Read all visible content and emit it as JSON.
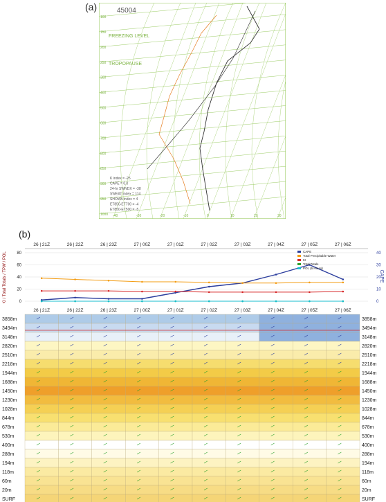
{
  "labels": {
    "a": "(a)",
    "b": "(b)"
  },
  "skewt": {
    "station": "45004",
    "freezing_level": "FREEZING LEVEL",
    "tropopause": "TROPOPAUSE",
    "indices": [
      "K index = -25",
      "CAPE = 0.0",
      "24-hr SWNDX = -38",
      "SWEAT index = 114",
      "SHOWA index = 4",
      "ET850-ET700 = -4",
      "ET850-ET500 = -5"
    ],
    "pressure_labels": [
      "100",
      "150",
      "200",
      "250",
      "300",
      "400",
      "500",
      "600",
      "700",
      "800",
      "850",
      "900",
      "950",
      "1000"
    ],
    "temp_labels": [
      "-40",
      "-30",
      "-20",
      "-10",
      "0",
      "10",
      "20",
      "30"
    ]
  },
  "timeseries": {
    "times": [
      "26 | 21Z",
      "26 | 22Z",
      "26 | 23Z",
      "27 | 00Z",
      "27 | 01Z",
      "27 | 02Z",
      "27 | 03Z",
      "27 | 04Z",
      "27 | 05Z",
      "27 | 06Z"
    ],
    "ylabel_left": "KI / Total Totals / TPW / POL",
    "ylabel_right": "CAPE",
    "legend": [
      "CAPE",
      "Total Precipitable Water",
      "KI",
      "Total Totals",
      "POL (6 Hours)"
    ]
  },
  "chart_data": [
    {
      "type": "line",
      "title": "",
      "xlabel": "",
      "ylabel": "KI / Total Totals / TPW / POL",
      "categories": [
        "26 | 21Z",
        "26 | 22Z",
        "26 | 23Z",
        "27 | 00Z",
        "27 | 01Z",
        "27 | 02Z",
        "27 | 03Z",
        "27 | 04Z",
        "27 | 05Z",
        "27 | 06Z"
      ],
      "ylim": [
        0,
        80
      ],
      "y2label": "CAPE",
      "y2lim": [
        0,
        40
      ],
      "legend_position": "top-right",
      "grid": true,
      "series": [
        {
          "name": "CAPE",
          "axis": "right",
          "color": "#2c3e9e",
          "values": [
            1,
            3,
            2,
            2,
            7,
            12,
            15,
            22,
            30,
            18
          ]
        },
        {
          "name": "Total Precipitable Water",
          "axis": "left",
          "color": "#f39c12",
          "values": [
            38,
            36,
            34,
            32,
            32,
            31,
            30,
            30,
            31,
            31
          ]
        },
        {
          "name": "KI",
          "axis": "left",
          "color": "#d62728",
          "values": [
            17,
            17,
            17,
            16,
            16,
            15,
            15,
            15,
            15,
            16
          ]
        },
        {
          "name": "Total Totals",
          "axis": "left",
          "color": "#2ca02c",
          "values": [
            0,
            0,
            0,
            0,
            0,
            0,
            0,
            0,
            0,
            0
          ]
        },
        {
          "name": "POL (6 Hours)",
          "axis": "left",
          "color": "#17becf",
          "values": [
            0,
            0,
            0,
            0,
            0,
            0,
            0,
            0,
            0,
            0
          ]
        }
      ]
    },
    {
      "type": "heatmap",
      "title": "",
      "columns": [
        "26 | 21Z",
        "26 | 22Z",
        "26 | 23Z",
        "27 | 00Z",
        "27 | 01Z",
        "27 | 02Z",
        "27 | 03Z",
        "27 | 04Z",
        "27 | 05Z",
        "27 | 06Z"
      ],
      "rows": [
        "3858m",
        "3494m",
        "3148m",
        "2820m",
        "2510m",
        "2218m",
        "1944m",
        "1688m",
        "1450m",
        "1230m",
        "1028m",
        "844m",
        "678m",
        "530m",
        "400m",
        "288m",
        "194m",
        "118m",
        "60m",
        "20m",
        "SURF"
      ],
      "legend_position": "none"
    }
  ]
}
